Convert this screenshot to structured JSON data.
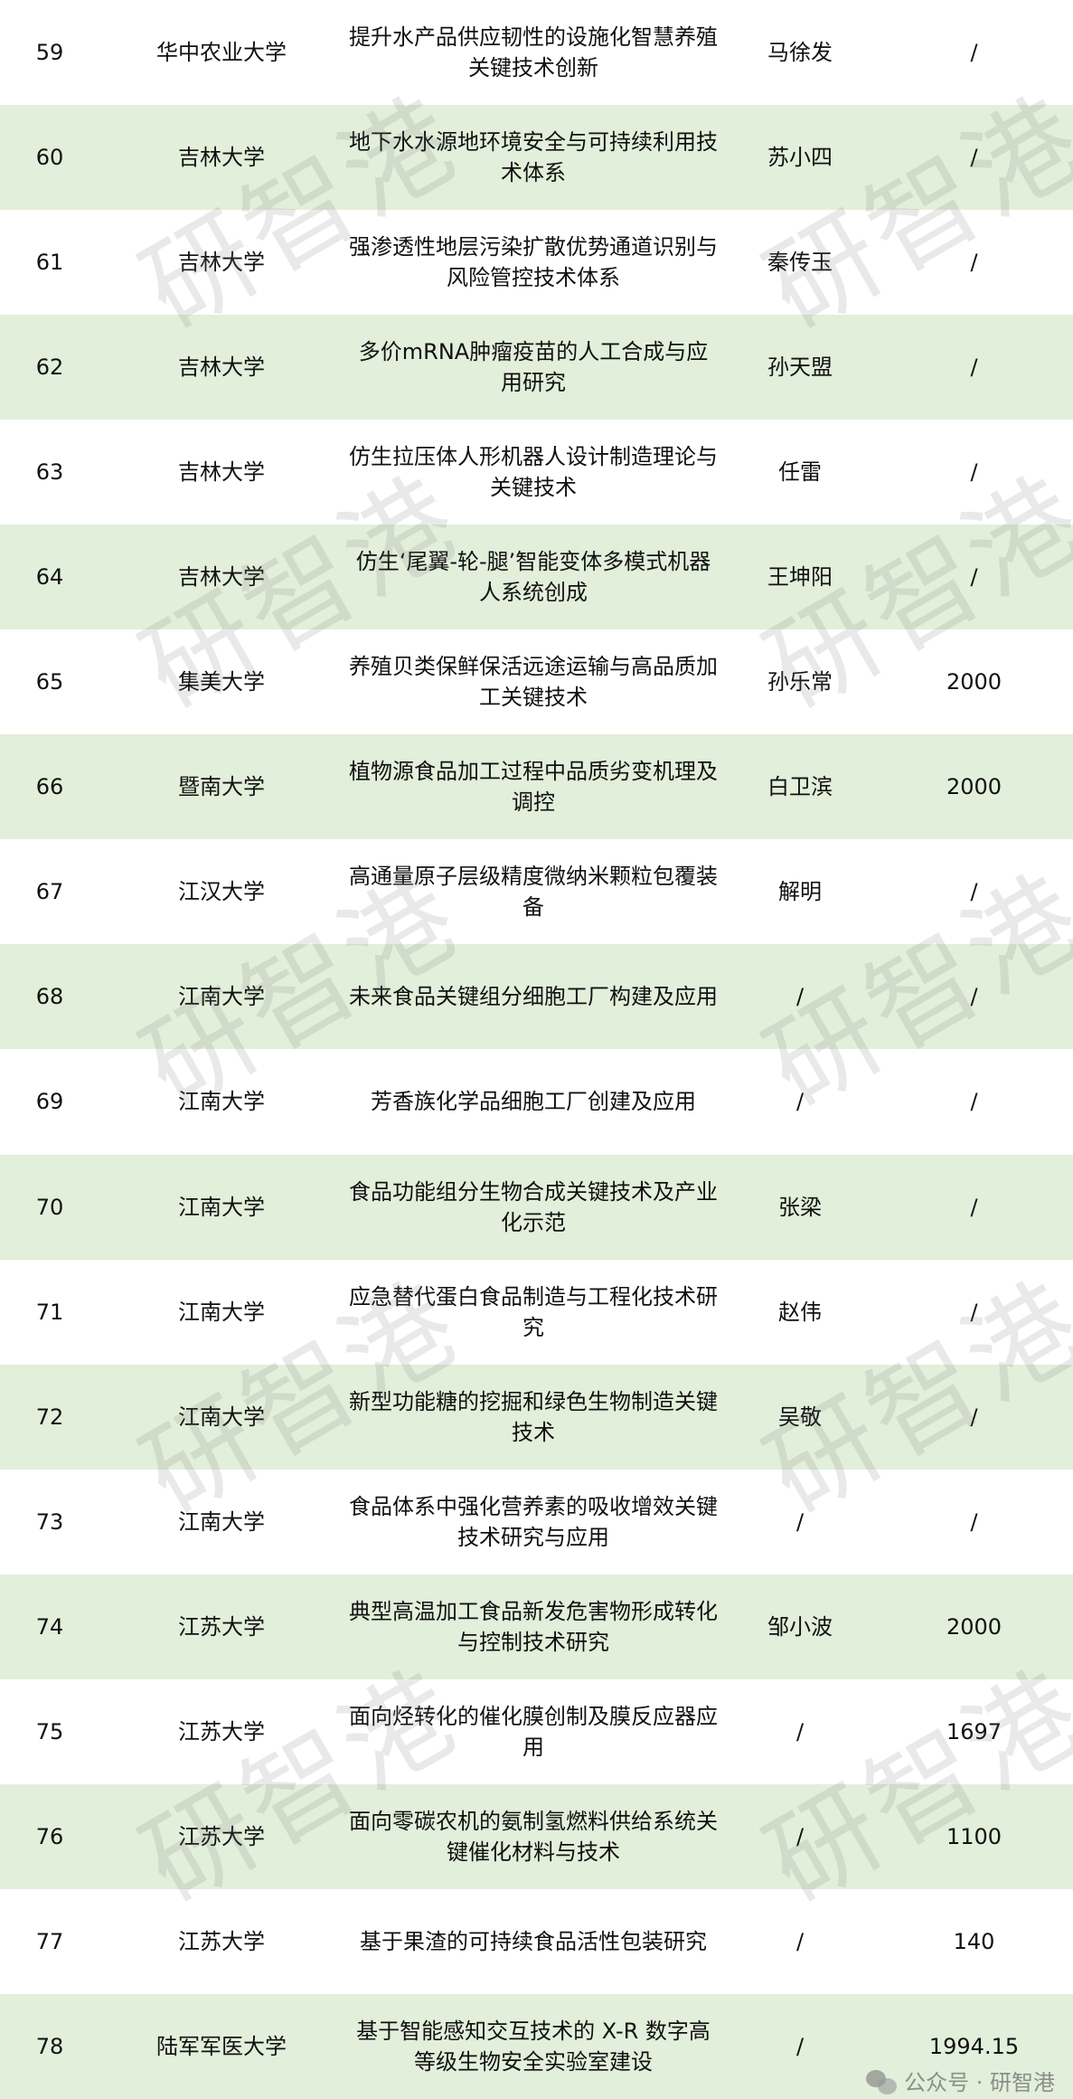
{
  "colors": {
    "stripe": "#e2efda",
    "watermark": "#9a9a9a"
  },
  "watermark": "研智港",
  "footer": {
    "icon": "wechat-icon",
    "label": "公众号 · 研智港"
  },
  "rows": [
    {
      "num": "59",
      "uni": "华中农业大学",
      "title": "提升水产品供应韧性的设施化智慧养殖关键技术创新",
      "person": "马徐发",
      "amount": "/"
    },
    {
      "num": "60",
      "uni": "吉林大学",
      "title": "地下水水源地环境安全与可持续利用技术体系",
      "person": "苏小四",
      "amount": "/"
    },
    {
      "num": "61",
      "uni": "吉林大学",
      "title": "强渗透性地层污染扩散优势通道识别与风险管控技术体系",
      "person": "秦传玉",
      "amount": "/"
    },
    {
      "num": "62",
      "uni": "吉林大学",
      "title": "多价mRNA肿瘤疫苗的人工合成与应用研究",
      "person": "孙天盟",
      "amount": "/"
    },
    {
      "num": "63",
      "uni": "吉林大学",
      "title": "仿生拉压体人形机器人设计制造理论与关键技术",
      "person": "任雷",
      "amount": "/"
    },
    {
      "num": "64",
      "uni": "吉林大学",
      "title": "仿生‘尾翼-轮-腿’智能变体多模式机器人系统创成",
      "person": "王坤阳",
      "amount": "/"
    },
    {
      "num": "65",
      "uni": "集美大学",
      "title": "养殖贝类保鲜保活远途运输与高品质加工关键技术",
      "person": "孙乐常",
      "amount": "2000"
    },
    {
      "num": "66",
      "uni": "暨南大学",
      "title": "植物源食品加工过程中品质劣变机理及调控",
      "person": "白卫滨",
      "amount": "2000"
    },
    {
      "num": "67",
      "uni": "江汉大学",
      "title": "高通量原子层级精度微纳米颗粒包覆装备",
      "person": "解明",
      "amount": "/"
    },
    {
      "num": "68",
      "uni": "江南大学",
      "title": "未来食品关键组分细胞工厂构建及应用",
      "person": "/",
      "amount": "/"
    },
    {
      "num": "69",
      "uni": "江南大学",
      "title": "芳香族化学品细胞工厂创建及应用",
      "person": "/",
      "amount": "/"
    },
    {
      "num": "70",
      "uni": "江南大学",
      "title": "食品功能组分生物合成关键技术及产业化示范",
      "person": "张梁",
      "amount": "/"
    },
    {
      "num": "71",
      "uni": "江南大学",
      "title": "应急替代蛋白食品制造与工程化技术研究",
      "person": "赵伟",
      "amount": "/"
    },
    {
      "num": "72",
      "uni": "江南大学",
      "title": "新型功能糖的挖掘和绿色生物制造关键技术",
      "person": "吴敬",
      "amount": "/"
    },
    {
      "num": "73",
      "uni": "江南大学",
      "title": "食品体系中强化营养素的吸收增效关键技术研究与应用",
      "person": "/",
      "amount": "/"
    },
    {
      "num": "74",
      "uni": "江苏大学",
      "title": "典型高温加工食品新发危害物形成转化与控制技术研究",
      "person": "邹小波",
      "amount": "2000"
    },
    {
      "num": "75",
      "uni": "江苏大学",
      "title": "面向烃转化的催化膜创制及膜反应器应用",
      "person": "/",
      "amount": "1697"
    },
    {
      "num": "76",
      "uni": "江苏大学",
      "title": "面向零碳农机的氨制氢燃料供给系统关键催化材料与技术",
      "person": "/",
      "amount": "1100"
    },
    {
      "num": "77",
      "uni": "江苏大学",
      "title": "基于果渣的可持续食品活性包装研究",
      "person": "/",
      "amount": "140"
    },
    {
      "num": "78",
      "uni": "陆军军医大学",
      "title": "基于智能感知交互技术的 X-R 数字高等级生物安全实验室建设",
      "person": "/",
      "amount": "1994.15"
    }
  ]
}
